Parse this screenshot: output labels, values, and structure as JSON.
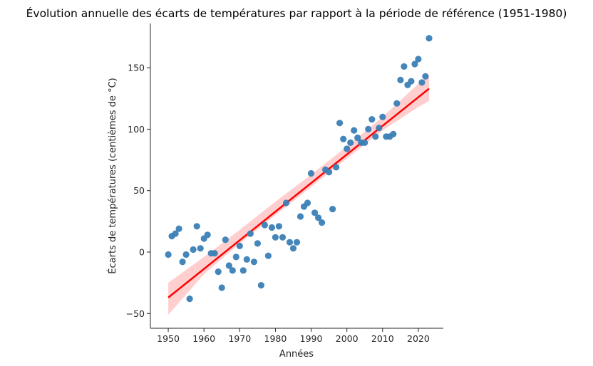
{
  "chart_data": {
    "type": "scatter",
    "title": "Évolution annuelle des écarts de températures par rapport à la période de référence (1951-1980)",
    "xlabel": "Années",
    "ylabel": "Écarts de températures (centièmes de °C)",
    "xlim": [
      1945,
      2027
    ],
    "ylim": [
      -62,
      186
    ],
    "xticks": [
      1950,
      1960,
      1970,
      1980,
      1990,
      2000,
      2010,
      2020
    ],
    "yticks": [
      -50,
      0,
      50,
      100,
      150
    ],
    "grid": false,
    "legend": "none",
    "colors": {
      "points": "#3b7fb6",
      "regression_line": "#ff0000",
      "confidence_band": "#ffc7c7"
    },
    "series": [
      {
        "x": [
          1950,
          1951,
          1952,
          1953,
          1954,
          1955,
          1956,
          1957,
          1958,
          1959,
          1960,
          1961,
          1962,
          1963,
          1964,
          1965,
          1966,
          1967,
          1968,
          1969,
          1970,
          1971,
          1972,
          1973,
          1974,
          1975,
          1976,
          1977,
          1978,
          1979,
          1980,
          1981,
          1982,
          1983,
          1984,
          1985,
          1986,
          1987,
          1988,
          1989,
          1990,
          1991,
          1992,
          1993,
          1994,
          1995,
          1996,
          1997,
          1998,
          1999,
          2000,
          2001,
          2002,
          2003,
          2004,
          2005,
          2006,
          2007,
          2008,
          2009,
          2010,
          2011,
          2012,
          2013,
          2014,
          2015,
          2016,
          2017,
          2018,
          2019,
          2020,
          2021,
          2022,
          2023
        ],
        "y": [
          -2,
          13,
          15,
          19,
          -8,
          -2,
          -38,
          2,
          21,
          3,
          11,
          14,
          -1,
          -1,
          -16,
          -29,
          10,
          -11,
          -15,
          -4,
          5,
          -15,
          -6,
          15,
          -8,
          7,
          -27,
          22,
          -3,
          20,
          12,
          21,
          12,
          40,
          8,
          3,
          8,
          29,
          37,
          40,
          64,
          32,
          28,
          24,
          67,
          65,
          35,
          69,
          105,
          92,
          84,
          89,
          99,
          93,
          89,
          89,
          100,
          108,
          94,
          101,
          110,
          94,
          94,
          96,
          121,
          140,
          151,
          136,
          139,
          153,
          157,
          138,
          143,
          174
        ]
      }
    ],
    "regression": {
      "x": [
        1950,
        2023
      ],
      "y": [
        -37,
        133
      ]
    },
    "confidence_band": {
      "x": [
        1950,
        1960,
        1970,
        1980,
        1990,
        2000,
        2010,
        2020,
        2023
      ],
      "lower": [
        -51,
        -18,
        7,
        30,
        53,
        76,
        99,
        118,
        123
      ],
      "upper": [
        -25,
        -4,
        18,
        41,
        63,
        86,
        110,
        137,
        144
      ]
    }
  }
}
